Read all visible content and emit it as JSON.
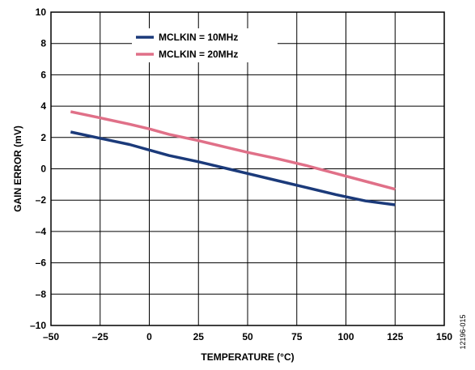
{
  "chart_data": {
    "type": "line",
    "xlabel": "TEMPERATURE (°C)",
    "ylabel": "GAIN ERROR (mV)",
    "xlim": [
      -50,
      150
    ],
    "ylim": [
      -10,
      10
    ],
    "x_ticks": [
      -50,
      -25,
      0,
      25,
      50,
      75,
      100,
      125,
      150
    ],
    "y_ticks": [
      -10,
      -8,
      -6,
      -4,
      -2,
      0,
      2,
      4,
      6,
      8,
      10
    ],
    "x_tick_labels": [
      "–50",
      "–25",
      "0",
      "25",
      "50",
      "75",
      "100",
      "125",
      "150"
    ],
    "y_tick_labels": [
      "–10",
      "–8",
      "–6",
      "–4",
      "–2",
      "0",
      "2",
      "4",
      "6",
      "8",
      "10"
    ],
    "grid": true,
    "legend_position": "top-center",
    "series": [
      {
        "name": "MCLKIN = 10MHz",
        "color": "#1b3a7a",
        "x": [
          -40,
          -25,
          -10,
          0,
          10,
          25,
          40,
          50,
          65,
          80,
          95,
          110,
          125
        ],
        "y": [
          2.35,
          1.95,
          1.55,
          1.2,
          0.85,
          0.45,
          0.0,
          -0.3,
          -0.75,
          -1.2,
          -1.65,
          -2.05,
          -2.3
        ]
      },
      {
        "name": "MCLKIN = 20MHz",
        "color": "#e07088",
        "x": [
          -40,
          -25,
          -10,
          0,
          10,
          25,
          40,
          50,
          65,
          80,
          95,
          110,
          125
        ],
        "y": [
          3.65,
          3.25,
          2.85,
          2.55,
          2.2,
          1.8,
          1.35,
          1.05,
          0.65,
          0.2,
          -0.3,
          -0.8,
          -1.3
        ]
      }
    ]
  },
  "figure_id": "12196-015"
}
